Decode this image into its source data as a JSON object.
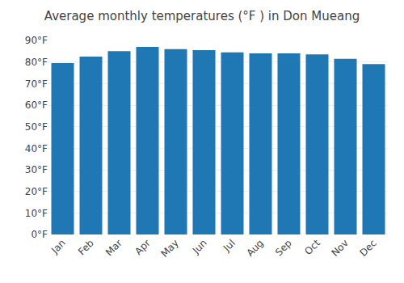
{
  "chart_data": {
    "type": "bar",
    "title": "Average monthly temperatures (°F ) in Don Mueang",
    "categories": [
      "Jan",
      "Feb",
      "Mar",
      "Apr",
      "May",
      "Jun",
      "Jul",
      "Aug",
      "Sep",
      "Oct",
      "Nov",
      "Dec"
    ],
    "values": [
      79.5,
      82.5,
      85.0,
      87.0,
      86.0,
      85.5,
      84.5,
      84.0,
      84.0,
      83.5,
      81.5,
      79.0
    ],
    "ylim": [
      0,
      90
    ],
    "yticks": [
      {
        "value": 0,
        "label": "0°F"
      },
      {
        "value": 10,
        "label": "10°F"
      },
      {
        "value": 20,
        "label": "20°F"
      },
      {
        "value": 30,
        "label": "30°F"
      },
      {
        "value": 40,
        "label": "40°F"
      },
      {
        "value": 50,
        "label": "50°F"
      },
      {
        "value": 60,
        "label": "60°F"
      },
      {
        "value": 70,
        "label": "70°F"
      },
      {
        "value": 80,
        "label": "80°F"
      },
      {
        "value": 90,
        "label": "90°F"
      }
    ],
    "grid": true
  }
}
